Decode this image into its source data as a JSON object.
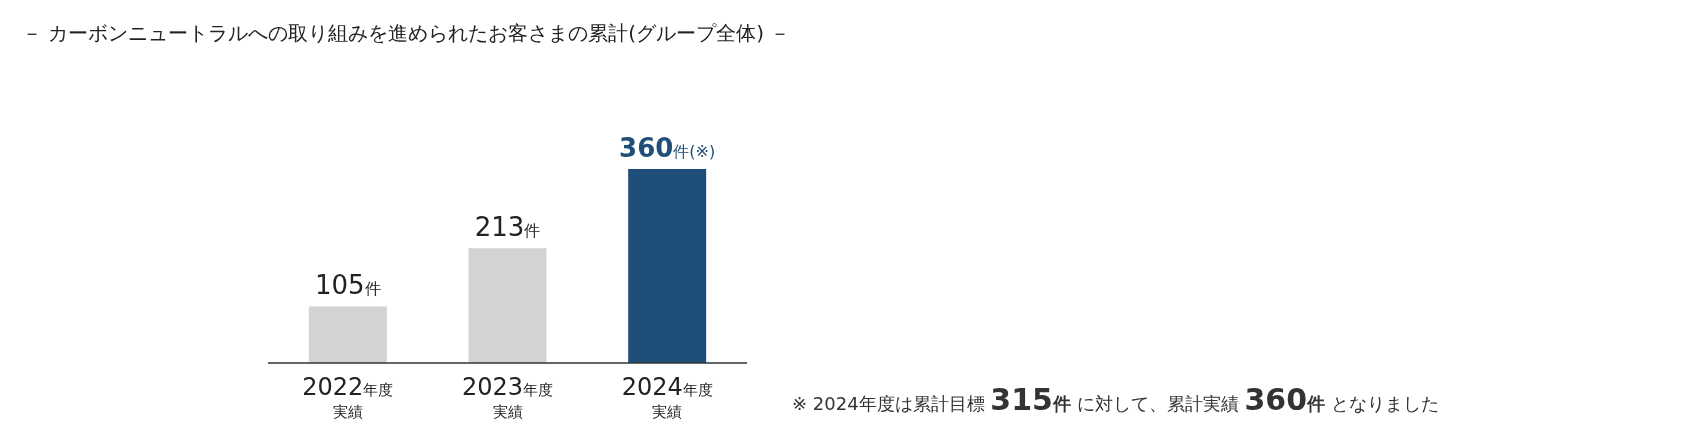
{
  "chart_data": {
    "type": "bar",
    "title": "－ カーボンニュートラルへの取り組みを進められたお客さまの累計(グループ全体) －",
    "categories": [
      "2022年度実績",
      "2023年度実績",
      "2024年度実績"
    ],
    "values": [
      105,
      213,
      360
    ],
    "colors": [
      "#d3d3d5",
      "#d3d3d5",
      "#1f4e79"
    ],
    "value_labels": [
      "105件",
      "213件",
      "360件(※)"
    ],
    "annotations": [
      "※ 2024年度は累計目標 315件 に対して、累計実績 360件 となりました"
    ]
  }
}
